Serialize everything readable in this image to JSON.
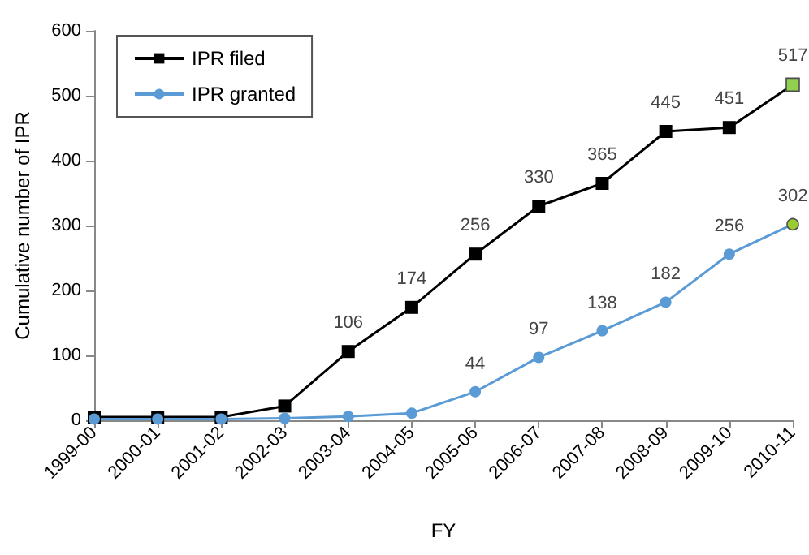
{
  "chart_data": {
    "type": "line",
    "xlabel": "FY",
    "ylabel": "Cumulative number of IPR",
    "categories": [
      "1999-00",
      "2000-01",
      "2001-02",
      "2002-03",
      "2003-04",
      "2004-05",
      "2005-06",
      "2006-07",
      "2007-08",
      "2008-09",
      "2009-10",
      "2010-11"
    ],
    "series": [
      {
        "name": "IPR filed",
        "color": "#000000",
        "marker": "square",
        "colors": [
          "#000000",
          "#000000",
          "#000000",
          "#000000",
          "#000000",
          "#000000",
          "#000000",
          "#000000",
          "#000000",
          "#000000",
          "#000000",
          "#92d050"
        ],
        "values": [
          5,
          5,
          5,
          22,
          106,
          174,
          256,
          330,
          365,
          445,
          451,
          517
        ],
        "value_labels": [
          null,
          null,
          null,
          null,
          "106",
          "174",
          "256",
          "330",
          "365",
          "445",
          "451",
          "517"
        ]
      },
      {
        "name": "IPR granted",
        "color": "#5b9bd5",
        "marker": "circle",
        "colors": [
          "#5b9bd5",
          "#5b9bd5",
          "#5b9bd5",
          "#5b9bd5",
          "#5b9bd5",
          "#5b9bd5",
          "#5b9bd5",
          "#5b9bd5",
          "#5b9bd5",
          "#5b9bd5",
          "#5b9bd5",
          "#9acd32"
        ],
        "values": [
          2,
          2,
          2,
          3,
          6,
          11,
          44,
          97,
          138,
          182,
          256,
          302
        ],
        "value_labels": [
          null,
          null,
          null,
          null,
          null,
          null,
          "44",
          "97",
          "138",
          "182",
          "256",
          "302"
        ]
      }
    ],
    "ylim": [
      0,
      600
    ],
    "yticks": [
      0,
      100,
      200,
      300,
      400,
      500,
      600
    ],
    "grid": false,
    "legend": "top left",
    "line_style": "solid"
  }
}
